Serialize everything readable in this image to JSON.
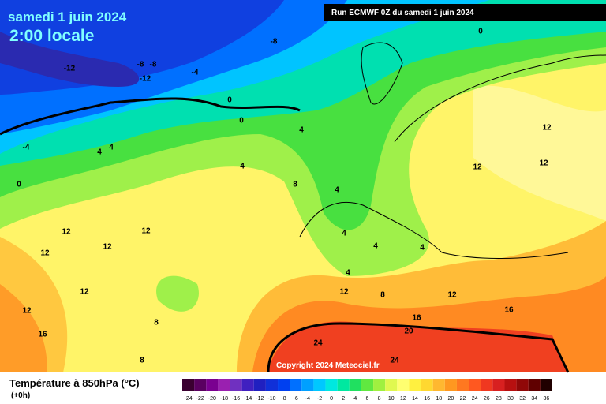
{
  "header": {
    "date": "samedi 1 juin 2024",
    "time": "2:00 locale",
    "run": "Run ECMWF 0Z du samedi 1 juin 2024"
  },
  "map": {
    "copyright": "Copyright 2024 Meteociel.fr",
    "contour_labels": [
      -8,
      -8,
      -8,
      -12,
      -12,
      -4,
      0,
      0,
      -4,
      4,
      4,
      4,
      4,
      8,
      4,
      0,
      12,
      12,
      12,
      12,
      4,
      4,
      4,
      4,
      12,
      8,
      12,
      12,
      12,
      8,
      16,
      20,
      16,
      16,
      24,
      24,
      8,
      12,
      12,
      12,
      0
    ]
  },
  "footer": {
    "title": "Température à 850hPa (°C)",
    "step": "(+0h)"
  },
  "colorbar": {
    "labels": [
      -24,
      -22,
      -20,
      -18,
      -16,
      -14,
      -12,
      -10,
      -8,
      -6,
      -4,
      -2,
      0,
      2,
      4,
      6,
      8,
      10,
      12,
      14,
      16,
      18,
      20,
      22,
      24,
      26,
      28,
      30,
      32,
      34,
      36
    ],
    "colors": [
      "#3a0030",
      "#5a0060",
      "#7a0090",
      "#9a20b0",
      "#7030c0",
      "#4020c0",
      "#2020c0",
      "#1030d8",
      "#0040f0",
      "#0070ff",
      "#00a0ff",
      "#00c8ff",
      "#00e8e0",
      "#00e8a0",
      "#20e060",
      "#60e840",
      "#a0f040",
      "#e0f850",
      "#ffff70",
      "#fff040",
      "#ffd830",
      "#ffb830",
      "#ff9820",
      "#ff7820",
      "#ff5820",
      "#f03820",
      "#d82020",
      "#b81010",
      "#900808",
      "#600000",
      "#200000"
    ]
  }
}
